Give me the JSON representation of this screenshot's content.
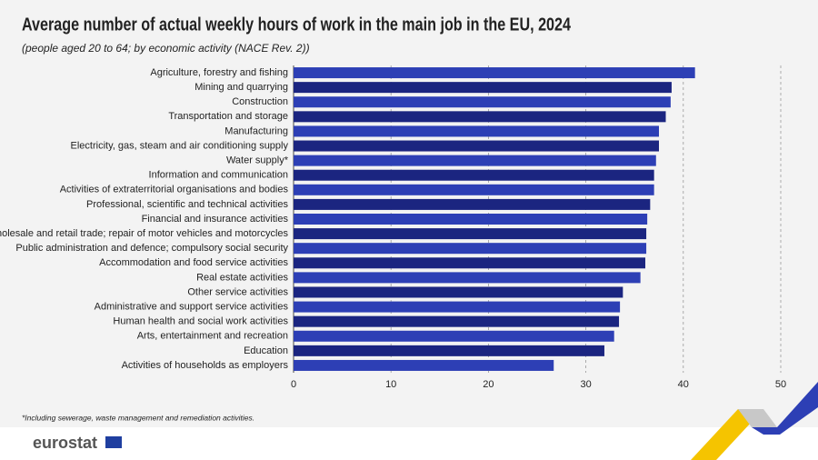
{
  "chart_data": {
    "type": "hbar",
    "title": "Average number of actual weekly hours of work in the main job in the EU, 2024",
    "subtitle": "(people aged 20 to 64; by economic activity (NACE Rev. 2))",
    "note": "*Including sewerage, waste management and remediation activities.",
    "logo": "eurostat",
    "categories": [
      "Agriculture, forestry and fishing",
      "Mining and quarrying",
      "Construction",
      "Transportation and storage",
      "Manufacturing",
      "Electricity, gas, steam and air conditioning supply",
      "Water supply*",
      "Information and communication",
      "Activities of extraterritorial organisations and bodies",
      "Professional, scientific and technical activities",
      "Financial and insurance activities",
      "Wholesale and retail trade; repair of motor vehicles and motorcycles",
      "Public administration and defence; compulsory social security",
      "Accommodation and food service activities",
      "Real estate activities",
      "Other service activities",
      "Administrative and support service activities",
      "Human health and social work activities",
      "Arts, entertainment and recreation",
      "Education",
      "Activities of households as employers"
    ],
    "values": [
      41.2,
      38.8,
      38.7,
      38.2,
      37.5,
      37.5,
      37.2,
      37.0,
      37.0,
      36.6,
      36.3,
      36.2,
      36.2,
      36.1,
      35.6,
      33.8,
      33.5,
      33.4,
      32.9,
      31.9,
      26.7
    ],
    "colors": [
      "#2d3fb5",
      "#1b2580"
    ],
    "xlim": [
      0,
      50
    ],
    "xticks": [
      0,
      10,
      20,
      30,
      40,
      50
    ],
    "grid": true
  }
}
